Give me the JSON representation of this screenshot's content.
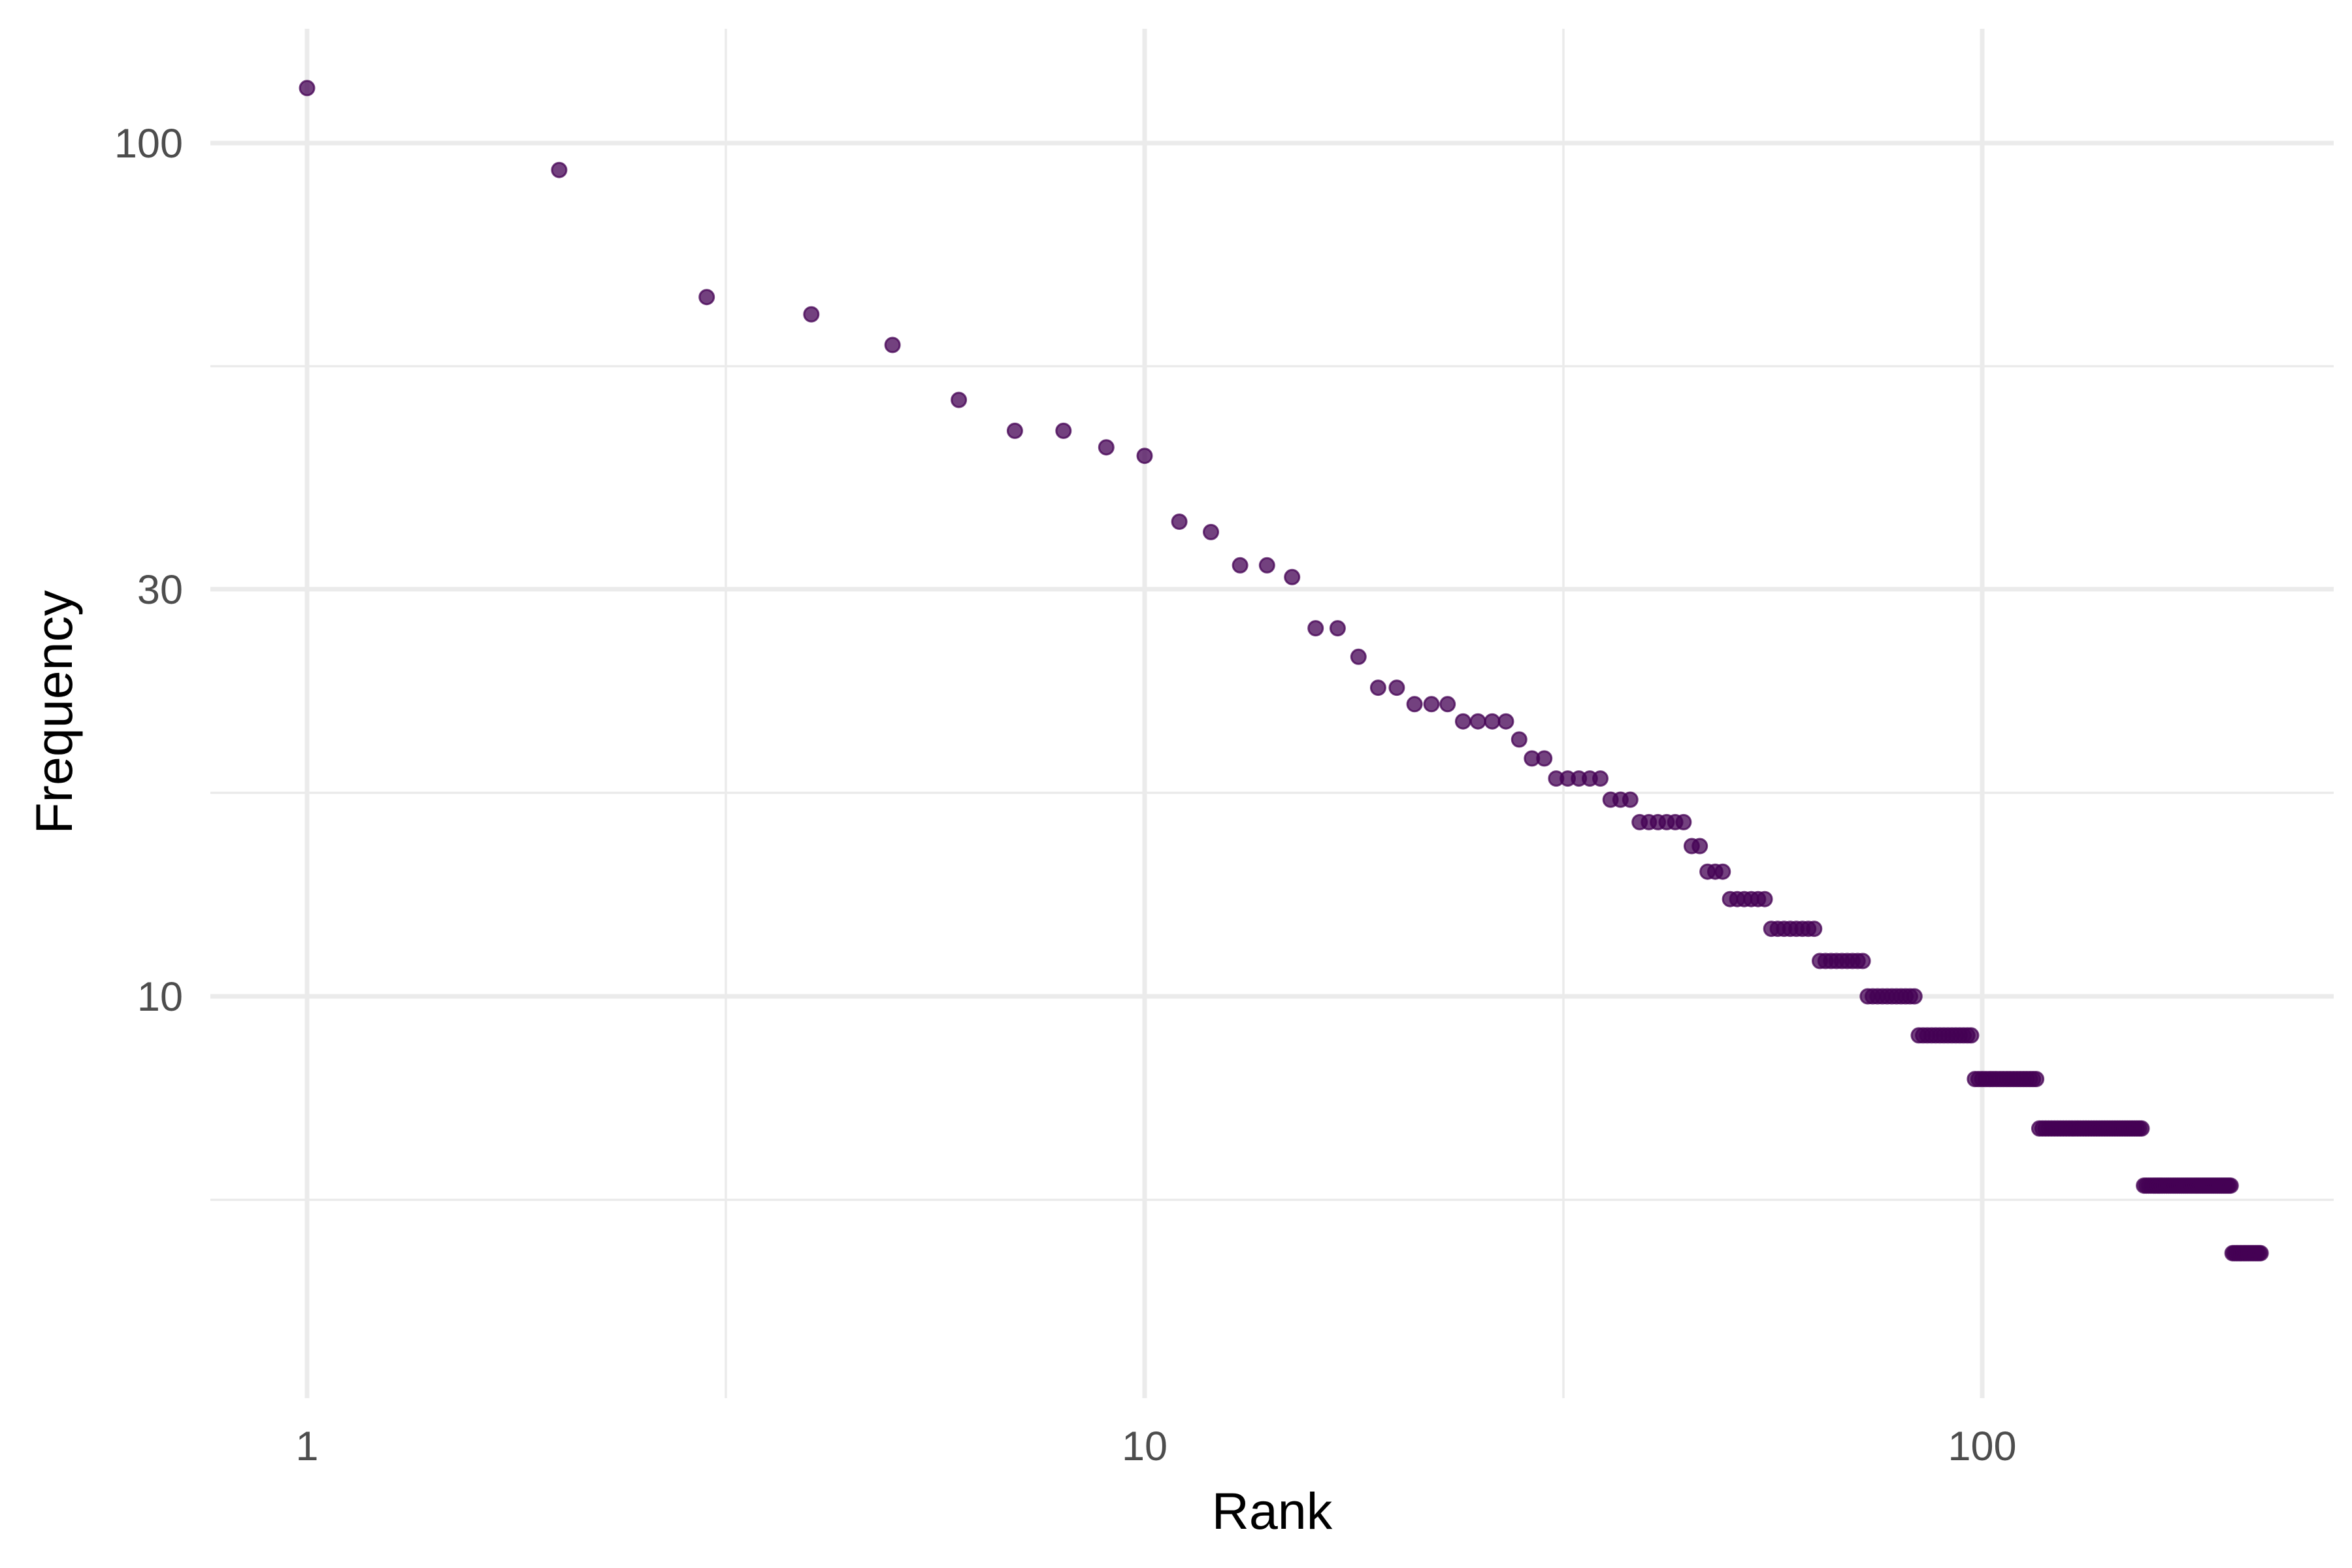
{
  "chart_data": {
    "type": "scatter",
    "title": "",
    "xlabel": "Rank",
    "ylabel": "Frequency",
    "x_scale": "log10",
    "y_scale": "log10",
    "xlim": [
      0.85,
      270
    ],
    "ylim": [
      3.2,
      126
    ],
    "x_ticks": [
      1,
      10,
      100
    ],
    "x_tick_labels": [
      "1",
      "10",
      "100"
    ],
    "y_ticks": [
      10,
      30,
      100
    ],
    "y_tick_labels": [
      "10",
      "30",
      "100"
    ],
    "grid": true,
    "point_color": "#440154",
    "point_opacity": 0.75,
    "points": [
      [
        1,
        116
      ],
      [
        2,
        93
      ],
      [
        3,
        66
      ],
      [
        4,
        63
      ],
      [
        5,
        58
      ],
      [
        6,
        50
      ],
      [
        7,
        46
      ],
      [
        8,
        46
      ],
      [
        9,
        44
      ],
      [
        10,
        43
      ],
      [
        11,
        36
      ],
      [
        12,
        35
      ],
      [
        13,
        32
      ],
      [
        14,
        32
      ],
      [
        15,
        31
      ],
      [
        16,
        27
      ],
      [
        17,
        27
      ],
      [
        18,
        25
      ],
      [
        19,
        23
      ],
      [
        20,
        23
      ],
      [
        21,
        22
      ],
      [
        22,
        22
      ],
      [
        23,
        22
      ],
      [
        24,
        21
      ],
      [
        25,
        21
      ],
      [
        26,
        21
      ],
      [
        27,
        21
      ],
      [
        28,
        20
      ],
      [
        29,
        19
      ],
      [
        30,
        19
      ],
      [
        31,
        18
      ],
      [
        32,
        18
      ],
      [
        33,
        18
      ],
      [
        34,
        18
      ],
      [
        35,
        18
      ],
      [
        36,
        17
      ],
      [
        37,
        17
      ],
      [
        38,
        17
      ],
      [
        39,
        16
      ],
      [
        40,
        16
      ],
      [
        41,
        16
      ],
      [
        42,
        16
      ],
      [
        43,
        16
      ],
      [
        44,
        16
      ],
      [
        45,
        15
      ],
      [
        46,
        15
      ],
      [
        47,
        14
      ],
      [
        48,
        14
      ],
      [
        49,
        14
      ],
      [
        50,
        13
      ],
      [
        51,
        13
      ],
      [
        52,
        13
      ],
      [
        53,
        13
      ],
      [
        54,
        13
      ],
      [
        55,
        13
      ],
      [
        56,
        12
      ],
      [
        57,
        12
      ],
      [
        58,
        12
      ],
      [
        59,
        12
      ],
      [
        60,
        12
      ],
      [
        61,
        12
      ],
      [
        62,
        12
      ],
      [
        63,
        12
      ],
      [
        64,
        11
      ],
      [
        65,
        11
      ],
      [
        66,
        11
      ],
      [
        67,
        11
      ],
      [
        68,
        11
      ],
      [
        69,
        11
      ],
      [
        70,
        11
      ],
      [
        71,
        11
      ],
      [
        72,
        11
      ],
      [
        73,
        10
      ],
      [
        74,
        10
      ],
      [
        75,
        10
      ],
      [
        76,
        10
      ],
      [
        77,
        10
      ],
      [
        78,
        10
      ],
      [
        79,
        10
      ],
      [
        80,
        10
      ],
      [
        81,
        10
      ],
      [
        82,
        10
      ],
      [
        83,
        10
      ],
      [
        84,
        9
      ],
      [
        85,
        9
      ],
      [
        86,
        9
      ],
      [
        87,
        9
      ],
      [
        88,
        9
      ],
      [
        89,
        9
      ],
      [
        90,
        9
      ],
      [
        91,
        9
      ],
      [
        92,
        9
      ],
      [
        93,
        9
      ],
      [
        94,
        9
      ],
      [
        95,
        9
      ],
      [
        96,
        9
      ],
      [
        97,
        9
      ],
      [
        98,
        8
      ],
      [
        99,
        8
      ],
      [
        100,
        8
      ],
      [
        101,
        8
      ],
      [
        102,
        8
      ],
      [
        103,
        8
      ],
      [
        104,
        8
      ],
      [
        105,
        8
      ],
      [
        106,
        8
      ],
      [
        107,
        8
      ],
      [
        108,
        8
      ],
      [
        109,
        8
      ],
      [
        110,
        8
      ],
      [
        111,
        8
      ],
      [
        112,
        8
      ],
      [
        113,
        8
      ],
      [
        114,
        8
      ],
      [
        115,
        8
      ],
      [
        116,
        8
      ],
      [
        117,
        7
      ],
      [
        118,
        7
      ],
      [
        119,
        7
      ],
      [
        120,
        7
      ],
      [
        121,
        7
      ],
      [
        122,
        7
      ],
      [
        123,
        7
      ],
      [
        124,
        7
      ],
      [
        125,
        7
      ],
      [
        126,
        7
      ],
      [
        127,
        7
      ],
      [
        128,
        7
      ],
      [
        129,
        7
      ],
      [
        130,
        7
      ],
      [
        131,
        7
      ],
      [
        132,
        7
      ],
      [
        133,
        7
      ],
      [
        134,
        7
      ],
      [
        135,
        7
      ],
      [
        136,
        7
      ],
      [
        137,
        7
      ],
      [
        138,
        7
      ],
      [
        139,
        7
      ],
      [
        140,
        7
      ],
      [
        141,
        7
      ],
      [
        142,
        7
      ],
      [
        143,
        7
      ],
      [
        144,
        7
      ],
      [
        145,
        7
      ],
      [
        146,
        7
      ],
      [
        147,
        7
      ],
      [
        148,
        7
      ],
      [
        149,
        7
      ],
      [
        150,
        7
      ],
      [
        151,
        7
      ],
      [
        152,
        7
      ],
      [
        153,
        7
      ],
      [
        154,
        7
      ],
      [
        155,
        7
      ],
      [
        156,
        6
      ],
      [
        157,
        6
      ],
      [
        158,
        6
      ],
      [
        159,
        6
      ],
      [
        160,
        6
      ],
      [
        161,
        6
      ],
      [
        162,
        6
      ],
      [
        163,
        6
      ],
      [
        164,
        6
      ],
      [
        165,
        6
      ],
      [
        166,
        6
      ],
      [
        167,
        6
      ],
      [
        168,
        6
      ],
      [
        169,
        6
      ],
      [
        170,
        6
      ],
      [
        171,
        6
      ],
      [
        172,
        6
      ],
      [
        173,
        6
      ],
      [
        174,
        6
      ],
      [
        175,
        6
      ],
      [
        176,
        6
      ],
      [
        177,
        6
      ],
      [
        178,
        6
      ],
      [
        179,
        6
      ],
      [
        180,
        6
      ],
      [
        181,
        6
      ],
      [
        182,
        6
      ],
      [
        183,
        6
      ],
      [
        184,
        6
      ],
      [
        185,
        6
      ],
      [
        186,
        6
      ],
      [
        187,
        6
      ],
      [
        188,
        6
      ],
      [
        189,
        6
      ],
      [
        190,
        6
      ],
      [
        191,
        6
      ],
      [
        192,
        6
      ],
      [
        193,
        6
      ],
      [
        194,
        6
      ],
      [
        195,
        6
      ],
      [
        196,
        6
      ],
      [
        197,
        6
      ],
      [
        198,
        6
      ],
      [
        199,
        5
      ],
      [
        200,
        5
      ],
      [
        201,
        5
      ],
      [
        202,
        5
      ],
      [
        203,
        5
      ],
      [
        204,
        5
      ],
      [
        205,
        5
      ],
      [
        206,
        5
      ],
      [
        207,
        5
      ],
      [
        208,
        5
      ],
      [
        209,
        5
      ],
      [
        210,
        5
      ],
      [
        211,
        5
      ],
      [
        212,
        5
      ],
      [
        213,
        5
      ],
      [
        214,
        5
      ],
      [
        215,
        5
      ]
    ]
  }
}
